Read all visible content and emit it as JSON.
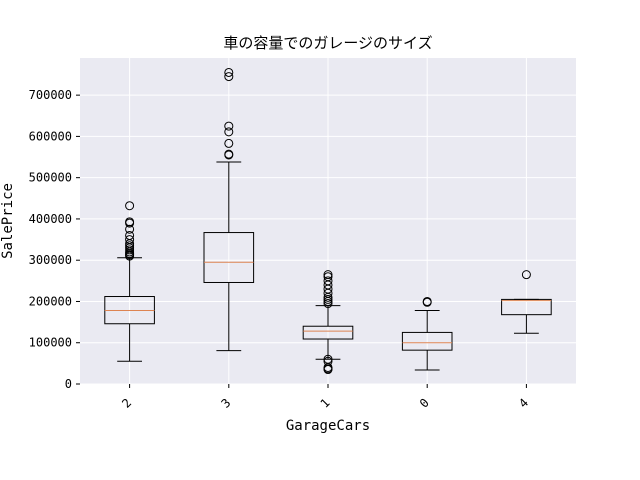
{
  "chart_data": {
    "type": "box",
    "title": "車の容量でのガレージのサイズ",
    "xlabel": "GarageCars",
    "ylabel": "SalePrice",
    "categories": [
      "2",
      "3",
      "1",
      "0",
      "4"
    ],
    "ylim": [
      0,
      790000
    ],
    "yticks": [
      0,
      100000,
      200000,
      300000,
      400000,
      500000,
      600000,
      700000
    ],
    "ytick_labels": [
      "0",
      "100000",
      "200000",
      "300000",
      "400000",
      "500000",
      "600000",
      "700000"
    ],
    "grid": true,
    "boxes": [
      {
        "category": "2",
        "whisker_low": 55000,
        "q1": 146000,
        "median": 178000,
        "q3": 212000,
        "whisker_high": 306000,
        "outliers": [
          310000,
          313000,
          316000,
          320000,
          325000,
          330000,
          335000,
          340000,
          350000,
          360000,
          375000,
          390000,
          393000,
          432000
        ]
      },
      {
        "category": "3",
        "whisker_low": 81000,
        "q1": 246000,
        "median": 295000,
        "q3": 367000,
        "whisker_high": 538000,
        "outliers": [
          555000,
          557000,
          583000,
          611000,
          625000,
          745000,
          755000
        ]
      },
      {
        "category": "1",
        "whisker_low": 60000,
        "q1": 109000,
        "median": 128000,
        "q3": 140000,
        "whisker_high": 190000,
        "outliers": [
          35000,
          37000,
          40000,
          55000,
          60000,
          195000,
          200000,
          205000,
          210000,
          220000,
          230000,
          240000,
          250000,
          260000,
          265000
        ]
      },
      {
        "category": "0",
        "whisker_low": 34000,
        "q1": 82000,
        "median": 100000,
        "q3": 125000,
        "whisker_high": 178000,
        "outliers": [
          198000,
          200000
        ]
      },
      {
        "category": "4",
        "whisker_low": 123000,
        "q1": 168000,
        "median": 202000,
        "q3": 205000,
        "whisker_high": 205000,
        "outliers": [
          265000
        ]
      }
    ],
    "colors": {
      "background": "#eaeaf2",
      "grid": "#ffffff",
      "median": "#dd8452",
      "box": "#000000"
    }
  }
}
